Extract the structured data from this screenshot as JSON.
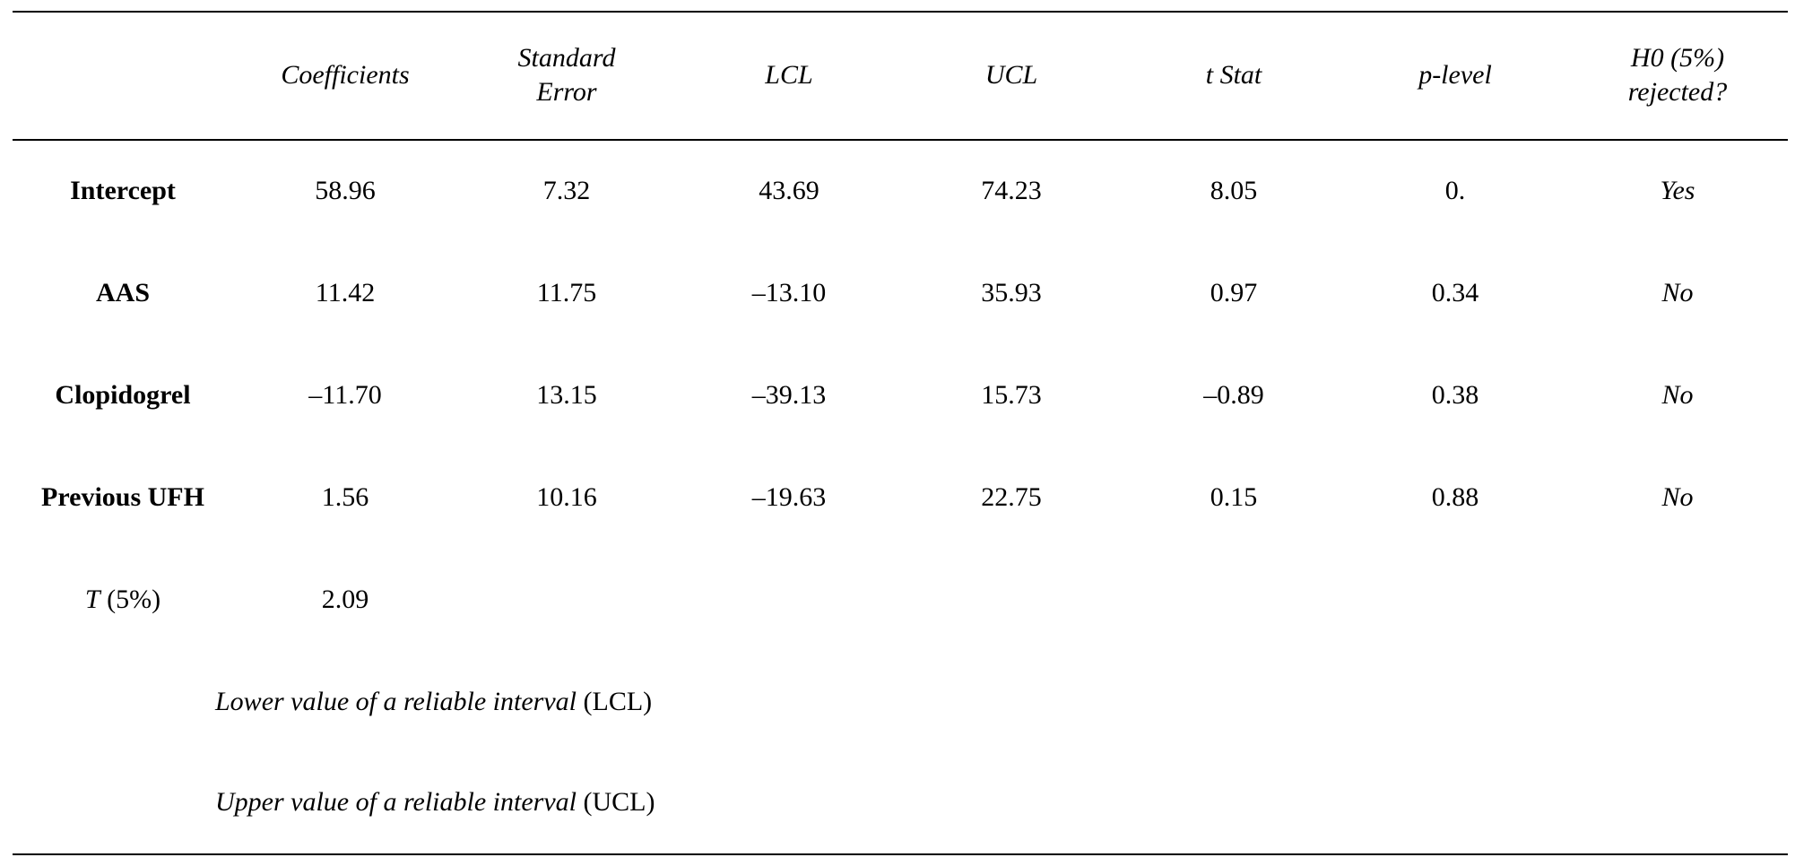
{
  "table": {
    "columns": [
      {
        "label_1": "",
        "label_2": ""
      },
      {
        "label_1": "Coefficients",
        "label_2": ""
      },
      {
        "label_1": "Standard",
        "label_2": "Error"
      },
      {
        "label_1": "LCL",
        "label_2": ""
      },
      {
        "label_1": "UCL",
        "label_2": ""
      },
      {
        "label_1": "t Stat",
        "label_2": ""
      },
      {
        "label_1": "p-level",
        "label_2": ""
      },
      {
        "label_1": "H0 (5%)",
        "label_2": "rejected?"
      }
    ],
    "rows": [
      {
        "label": "Intercept",
        "values": [
          "58.96",
          "7.32",
          "43.69",
          "74.23",
          "8.05",
          "0.",
          "Yes"
        ]
      },
      {
        "label": "AAS",
        "values": [
          "11.42",
          "11.75",
          "–13.10",
          "35.93",
          "0.97",
          "0.34",
          "No"
        ]
      },
      {
        "label": "Clopidogrel",
        "values": [
          "–11.70",
          "13.15",
          "–39.13",
          "15.73",
          "–0.89",
          "0.38",
          "No"
        ]
      },
      {
        "label": "Previous UFH",
        "values": [
          "1.56",
          "10.16",
          "–19.63",
          "22.75",
          "0.15",
          "0.88",
          "No"
        ]
      }
    ],
    "t_row": {
      "label_var": "T",
      "label_rest": " (5%)",
      "value": "2.09"
    },
    "notes": [
      {
        "text": "Lower value of a reliable interval",
        "abbr": "(LCL)"
      },
      {
        "text": "Upper value of a reliable interval",
        "abbr": "(UCL)"
      }
    ]
  }
}
